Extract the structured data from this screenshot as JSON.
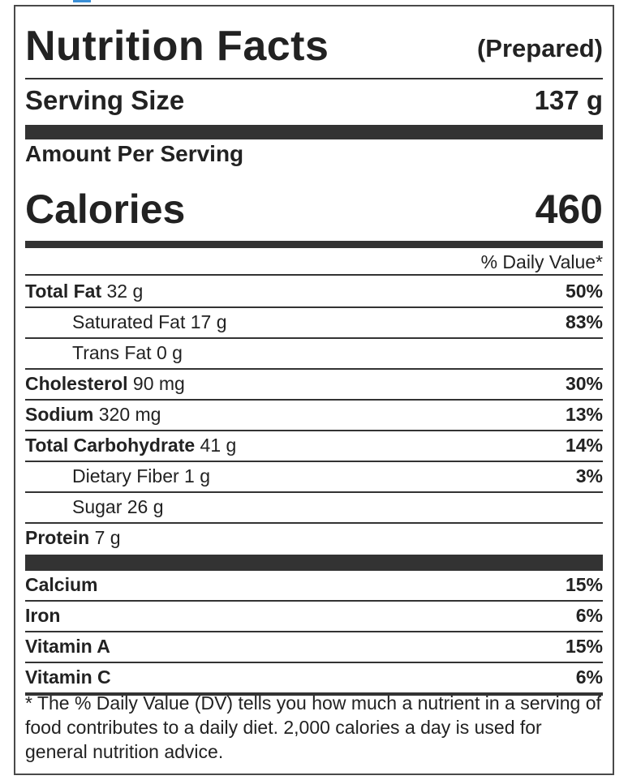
{
  "header": {
    "title": "Nutrition Facts",
    "qualifier": "(Prepared)"
  },
  "serving": {
    "label": "Serving Size",
    "value": "137 g"
  },
  "amount_label": "Amount Per Serving",
  "calories": {
    "label": "Calories",
    "value": "460"
  },
  "daily_value_header": "% Daily Value*",
  "nutrients": [
    {
      "name": "Total Fat",
      "amount": " 32 g",
      "pct": "50%"
    },
    {
      "name": "Saturated Fat 17 g",
      "amount": "",
      "pct": "83%"
    },
    {
      "name": "Trans Fat 0 g",
      "amount": "",
      "pct": ""
    },
    {
      "name": "Cholesterol",
      "amount": " 90 mg",
      "pct": "30%"
    },
    {
      "name": "Sodium",
      "amount": " 320 mg",
      "pct": "13%"
    },
    {
      "name": "Total Carbohydrate",
      "amount": " 41 g",
      "pct": "14%"
    },
    {
      "name": "Dietary Fiber 1 g",
      "amount": "",
      "pct": "3%"
    },
    {
      "name": "Sugar 26 g",
      "amount": "",
      "pct": ""
    },
    {
      "name": "Protein",
      "amount": " 7 g",
      "pct": ""
    }
  ],
  "vitamins": [
    {
      "name": "Calcium",
      "pct": "15%"
    },
    {
      "name": "Iron",
      "pct": "6%"
    },
    {
      "name": "Vitamin A",
      "pct": "15%"
    },
    {
      "name": "Vitamin C",
      "pct": "6%"
    }
  ],
  "footnote": "* The % Daily Value (DV) tells you how much a nutrient in a serving of food contributes to a daily diet. 2,000 calories a day is used for general nutrition advice.",
  "colors": {
    "border": "#4a4a4a",
    "text": "#222222",
    "rule": "#333333",
    "accent": "#3a8fd6"
  }
}
